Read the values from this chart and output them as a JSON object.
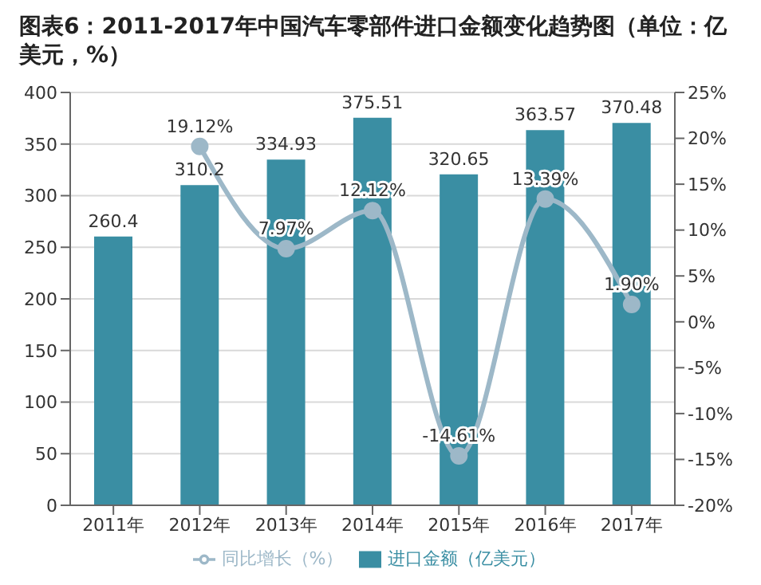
{
  "chart_data": {
    "type": "bar",
    "title": "图表6：2011-2017年中国汽车零部件进口金额变化趋势图（单位：亿美元，%）",
    "categories": [
      "2011年",
      "2012年",
      "2013年",
      "2014年",
      "2015年",
      "2016年",
      "2017年"
    ],
    "series": [
      {
        "name": "进口金额（亿美元）",
        "color": "#3a8ea3",
        "values": [
          260.4,
          310.2,
          334.93,
          375.51,
          320.65,
          363.57,
          370.48
        ],
        "value_labels": [
          "260.4",
          "310.2",
          "334.93",
          "375.51",
          "320.65",
          "363.57",
          "370.48"
        ]
      },
      {
        "name": "同比增长（%）",
        "type": "line",
        "axis": "y2",
        "color": "#9db8c8",
        "values": [
          null,
          19.12,
          7.97,
          12.12,
          -14.61,
          13.39,
          1.9
        ],
        "value_labels": [
          null,
          "19.12%",
          "7.97%",
          "12.12%",
          "-14.61%",
          "13.39%",
          "1.90%"
        ]
      }
    ],
    "ylim": [
      0,
      400
    ],
    "yticks": [
      0,
      50,
      100,
      150,
      200,
      250,
      300,
      350,
      400
    ],
    "y2lim": [
      -20,
      25
    ],
    "y2ticks": [
      {
        "value": -20,
        "label": "-20%"
      },
      {
        "value": -15,
        "label": "-15%"
      },
      {
        "value": -10,
        "label": "-10%"
      },
      {
        "value": -5,
        "label": "-5%"
      },
      {
        "value": 0,
        "label": "0%"
      },
      {
        "value": 5,
        "label": "5%"
      },
      {
        "value": 10,
        "label": "10%"
      },
      {
        "value": 15,
        "label": "15%"
      },
      {
        "value": 20,
        "label": "20%"
      },
      {
        "value": 25,
        "label": "25%"
      }
    ],
    "grid": "y",
    "legend": "bottom",
    "marker": "circle",
    "line_style": "solid"
  }
}
